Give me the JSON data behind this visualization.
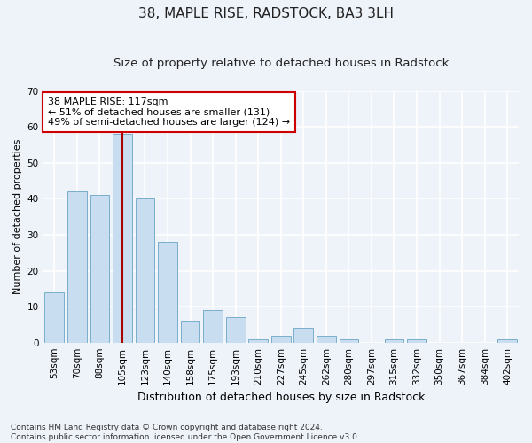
{
  "title": "38, MAPLE RISE, RADSTOCK, BA3 3LH",
  "subtitle": "Size of property relative to detached houses in Radstock",
  "xlabel": "Distribution of detached houses by size in Radstock",
  "ylabel": "Number of detached properties",
  "categories": [
    "53sqm",
    "70sqm",
    "88sqm",
    "105sqm",
    "123sqm",
    "140sqm",
    "158sqm",
    "175sqm",
    "193sqm",
    "210sqm",
    "227sqm",
    "245sqm",
    "262sqm",
    "280sqm",
    "297sqm",
    "315sqm",
    "332sqm",
    "350sqm",
    "367sqm",
    "384sqm",
    "402sqm"
  ],
  "values": [
    14,
    42,
    41,
    58,
    40,
    28,
    6,
    9,
    7,
    1,
    2,
    4,
    2,
    1,
    0,
    1,
    1,
    0,
    0,
    0,
    1
  ],
  "bar_color": "#c8ddef",
  "bar_edge_color": "#7aaecb",
  "background_color": "#eef2f9",
  "grid_color": "#ffffff",
  "vline_x_index": 3,
  "vline_color": "#aa0000",
  "annotation_text": "38 MAPLE RISE: 117sqm\n← 51% of detached houses are smaller (131)\n49% of semi-detached houses are larger (124) →",
  "annotation_box_facecolor": "#ffffff",
  "annotation_box_edgecolor": "#cc0000",
  "ylim": [
    0,
    70
  ],
  "yticks": [
    0,
    10,
    20,
    30,
    40,
    50,
    60,
    70
  ],
  "footnote": "Contains HM Land Registry data © Crown copyright and database right 2024.\nContains public sector information licensed under the Open Government Licence v3.0.",
  "title_fontsize": 11,
  "subtitle_fontsize": 9.5,
  "xlabel_fontsize": 9,
  "ylabel_fontsize": 8,
  "tick_fontsize": 7.5,
  "annotation_fontsize": 8,
  "footnote_fontsize": 6.5
}
